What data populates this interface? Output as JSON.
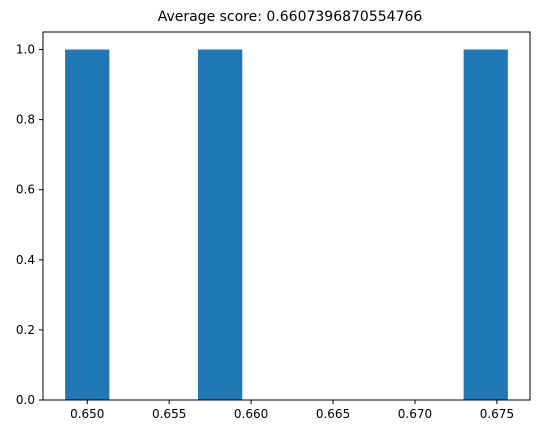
{
  "chart_data": {
    "type": "bar",
    "title": "Average score: 0.6607396870554766",
    "xlabel": "",
    "ylabel": "",
    "bars": [
      {
        "x0": 0.64865,
        "x1": 0.65135,
        "value": 1.0
      },
      {
        "x0": 0.65676,
        "x1": 0.65946,
        "value": 1.0
      },
      {
        "x0": 0.67297,
        "x1": 0.67567,
        "value": 1.0
      }
    ],
    "xlim": [
      0.6473,
      0.67702
    ],
    "ylim": [
      0.0,
      1.05
    ],
    "x_ticks": [
      {
        "value": 0.65,
        "label": "0.650"
      },
      {
        "value": 0.655,
        "label": "0.655"
      },
      {
        "value": 0.66,
        "label": "0.660"
      },
      {
        "value": 0.665,
        "label": "0.665"
      },
      {
        "value": 0.67,
        "label": "0.670"
      },
      {
        "value": 0.675,
        "label": "0.675"
      }
    ],
    "y_ticks": [
      {
        "value": 0.0,
        "label": "0.0"
      },
      {
        "value": 0.2,
        "label": "0.2"
      },
      {
        "value": 0.4,
        "label": "0.4"
      },
      {
        "value": 0.6,
        "label": "0.6"
      },
      {
        "value": 0.8,
        "label": "0.8"
      },
      {
        "value": 1.0,
        "label": "1.0"
      }
    ],
    "grid": false,
    "legend": "none",
    "bar_color": "#1f77b4"
  }
}
